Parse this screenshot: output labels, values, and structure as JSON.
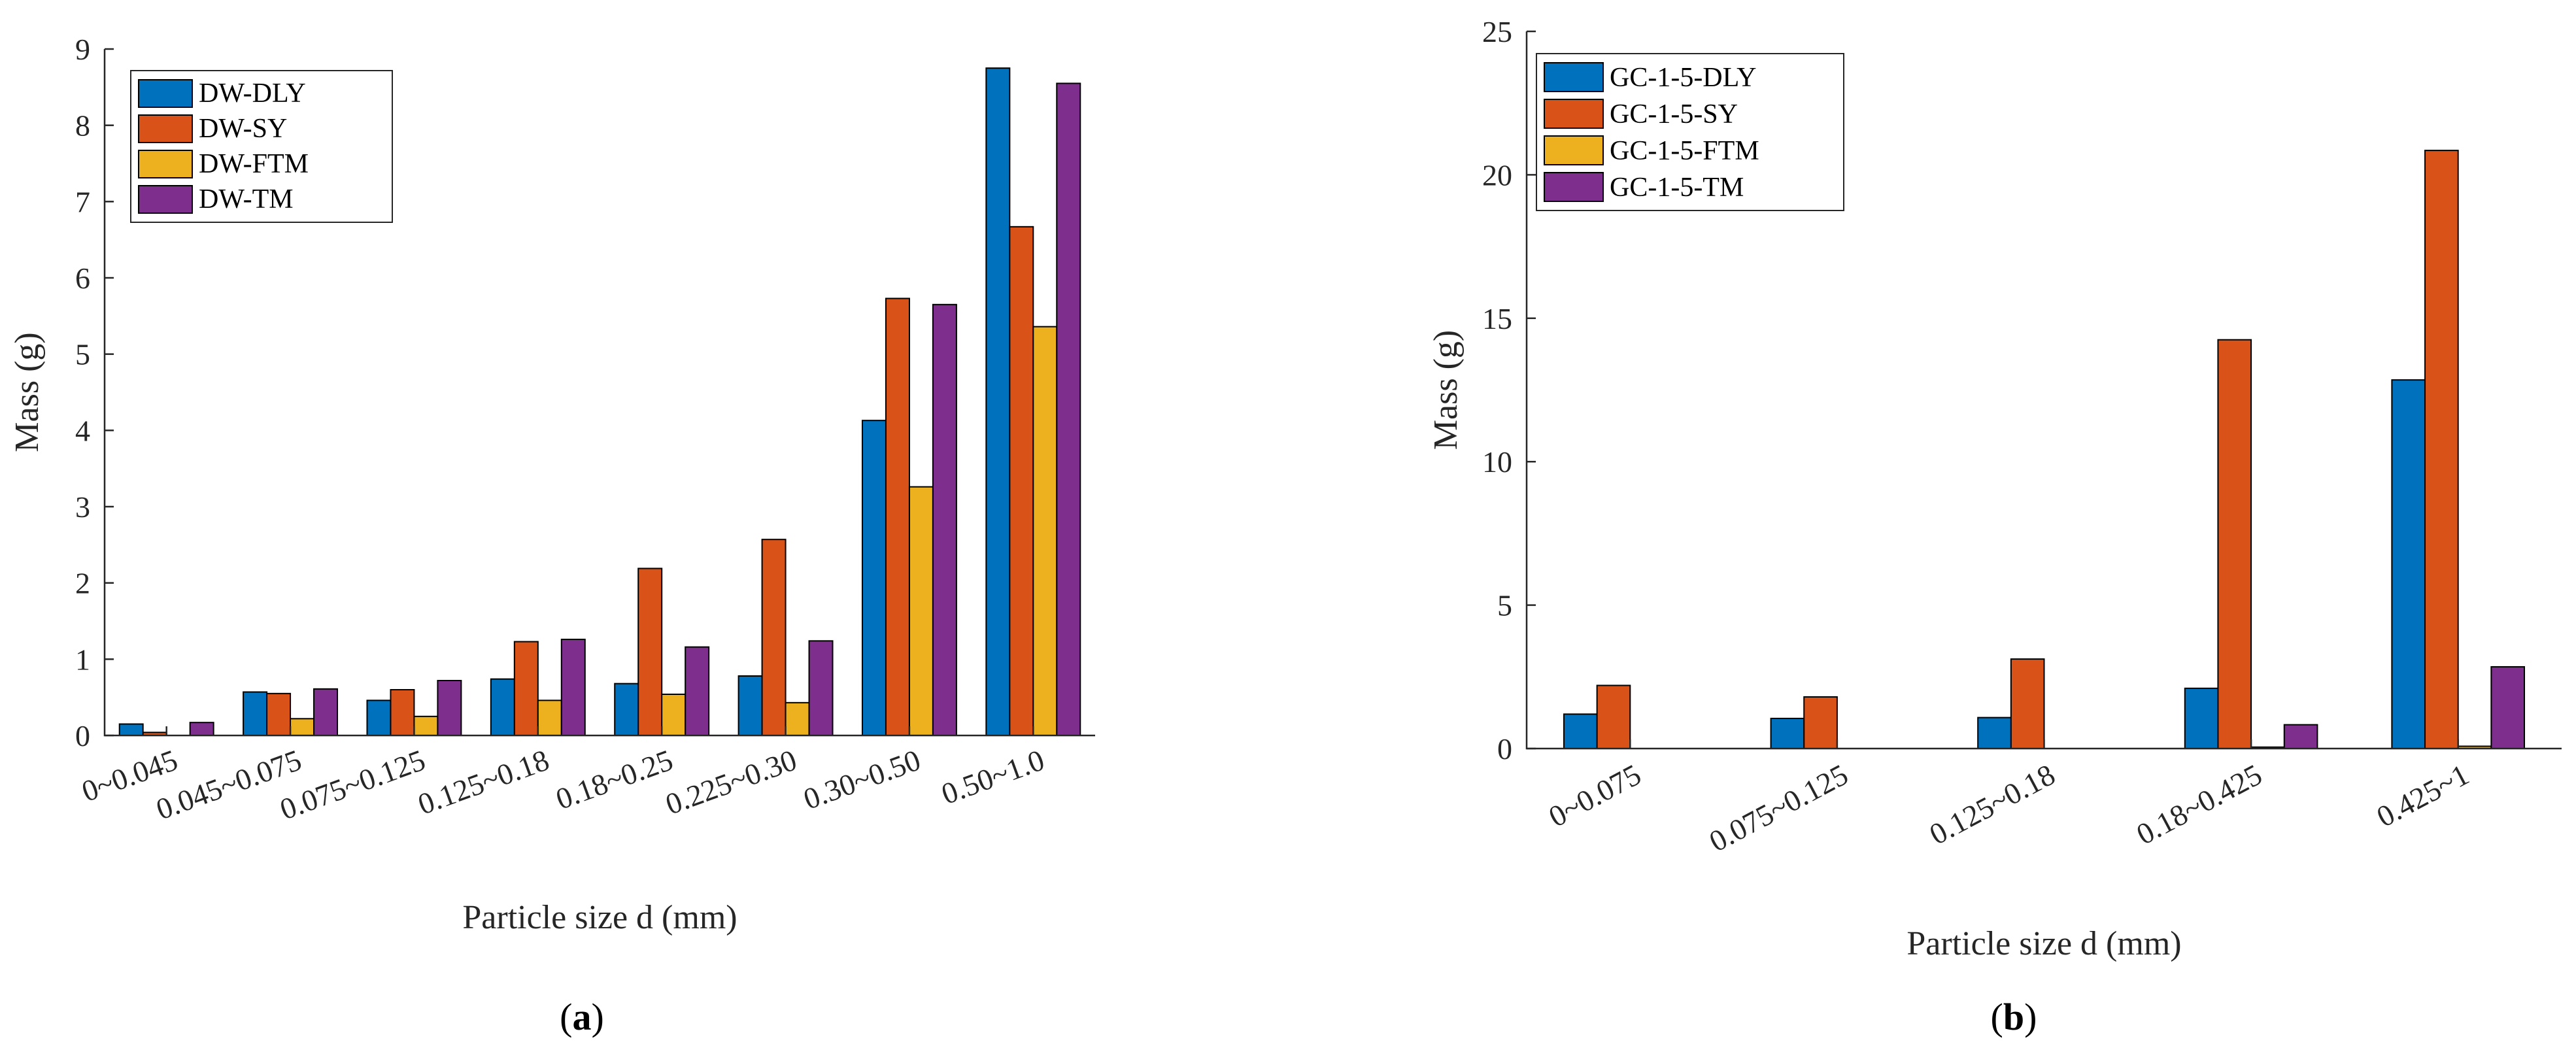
{
  "colors": [
    "#0072BD",
    "#D95319",
    "#EDB120",
    "#7E2F8E"
  ],
  "chart_data": [
    {
      "type": "bar",
      "caption_letter": "a",
      "xlabel": "Particle size d (mm)",
      "ylabel": "Mass (g)",
      "ylim": [
        0,
        9
      ],
      "yticks": [
        "0",
        "1",
        "2",
        "3",
        "4",
        "5",
        "6",
        "7",
        "8",
        "9"
      ],
      "categories": [
        "0~0.045",
        "0.045~0.075",
        "0.075~0.125",
        "0.125~0.18",
        "0.18~0.25",
        "0.225~0.30",
        "0.30~0.50",
        "0.50~1.0"
      ],
      "legend_position": "top-left",
      "series": [
        {
          "name": "DW-DLY",
          "values": [
            0.15,
            0.57,
            0.46,
            0.74,
            0.68,
            0.78,
            4.13,
            8.75
          ]
        },
        {
          "name": "DW-SY",
          "values": [
            0.04,
            0.55,
            0.6,
            1.23,
            2.19,
            2.57,
            5.73,
            6.67
          ]
        },
        {
          "name": "DW-FTM",
          "values": [
            0.0,
            0.22,
            0.25,
            0.46,
            0.54,
            0.43,
            3.26,
            5.36
          ]
        },
        {
          "name": "DW-TM",
          "values": [
            0.17,
            0.61,
            0.72,
            1.26,
            1.16,
            1.24,
            5.65,
            8.55
          ]
        }
      ]
    },
    {
      "type": "bar",
      "caption_letter": "b",
      "xlabel": "Particle size d (mm)",
      "ylabel": "Mass (g)",
      "ylim": [
        0,
        25
      ],
      "yticks": [
        "0",
        "5",
        "10",
        "15",
        "20",
        "25"
      ],
      "categories": [
        "0~0.075",
        "0.075~0.125",
        "0.125~0.18",
        "0.18~0.425",
        "0.425~1"
      ],
      "legend_position": "top-left",
      "series": [
        {
          "name": "GC-1-5-DLY",
          "values": [
            1.2,
            1.05,
            1.08,
            2.1,
            12.85
          ]
        },
        {
          "name": "GC-1-5-SY",
          "values": [
            2.2,
            1.8,
            3.12,
            14.25,
            20.85
          ]
        },
        {
          "name": "GC-1-5-FTM",
          "values": [
            0.0,
            0.0,
            0.0,
            0.05,
            0.08
          ]
        },
        {
          "name": "GC-1-5-TM",
          "values": [
            0.0,
            0.0,
            0.0,
            0.83,
            2.85
          ]
        }
      ]
    }
  ]
}
